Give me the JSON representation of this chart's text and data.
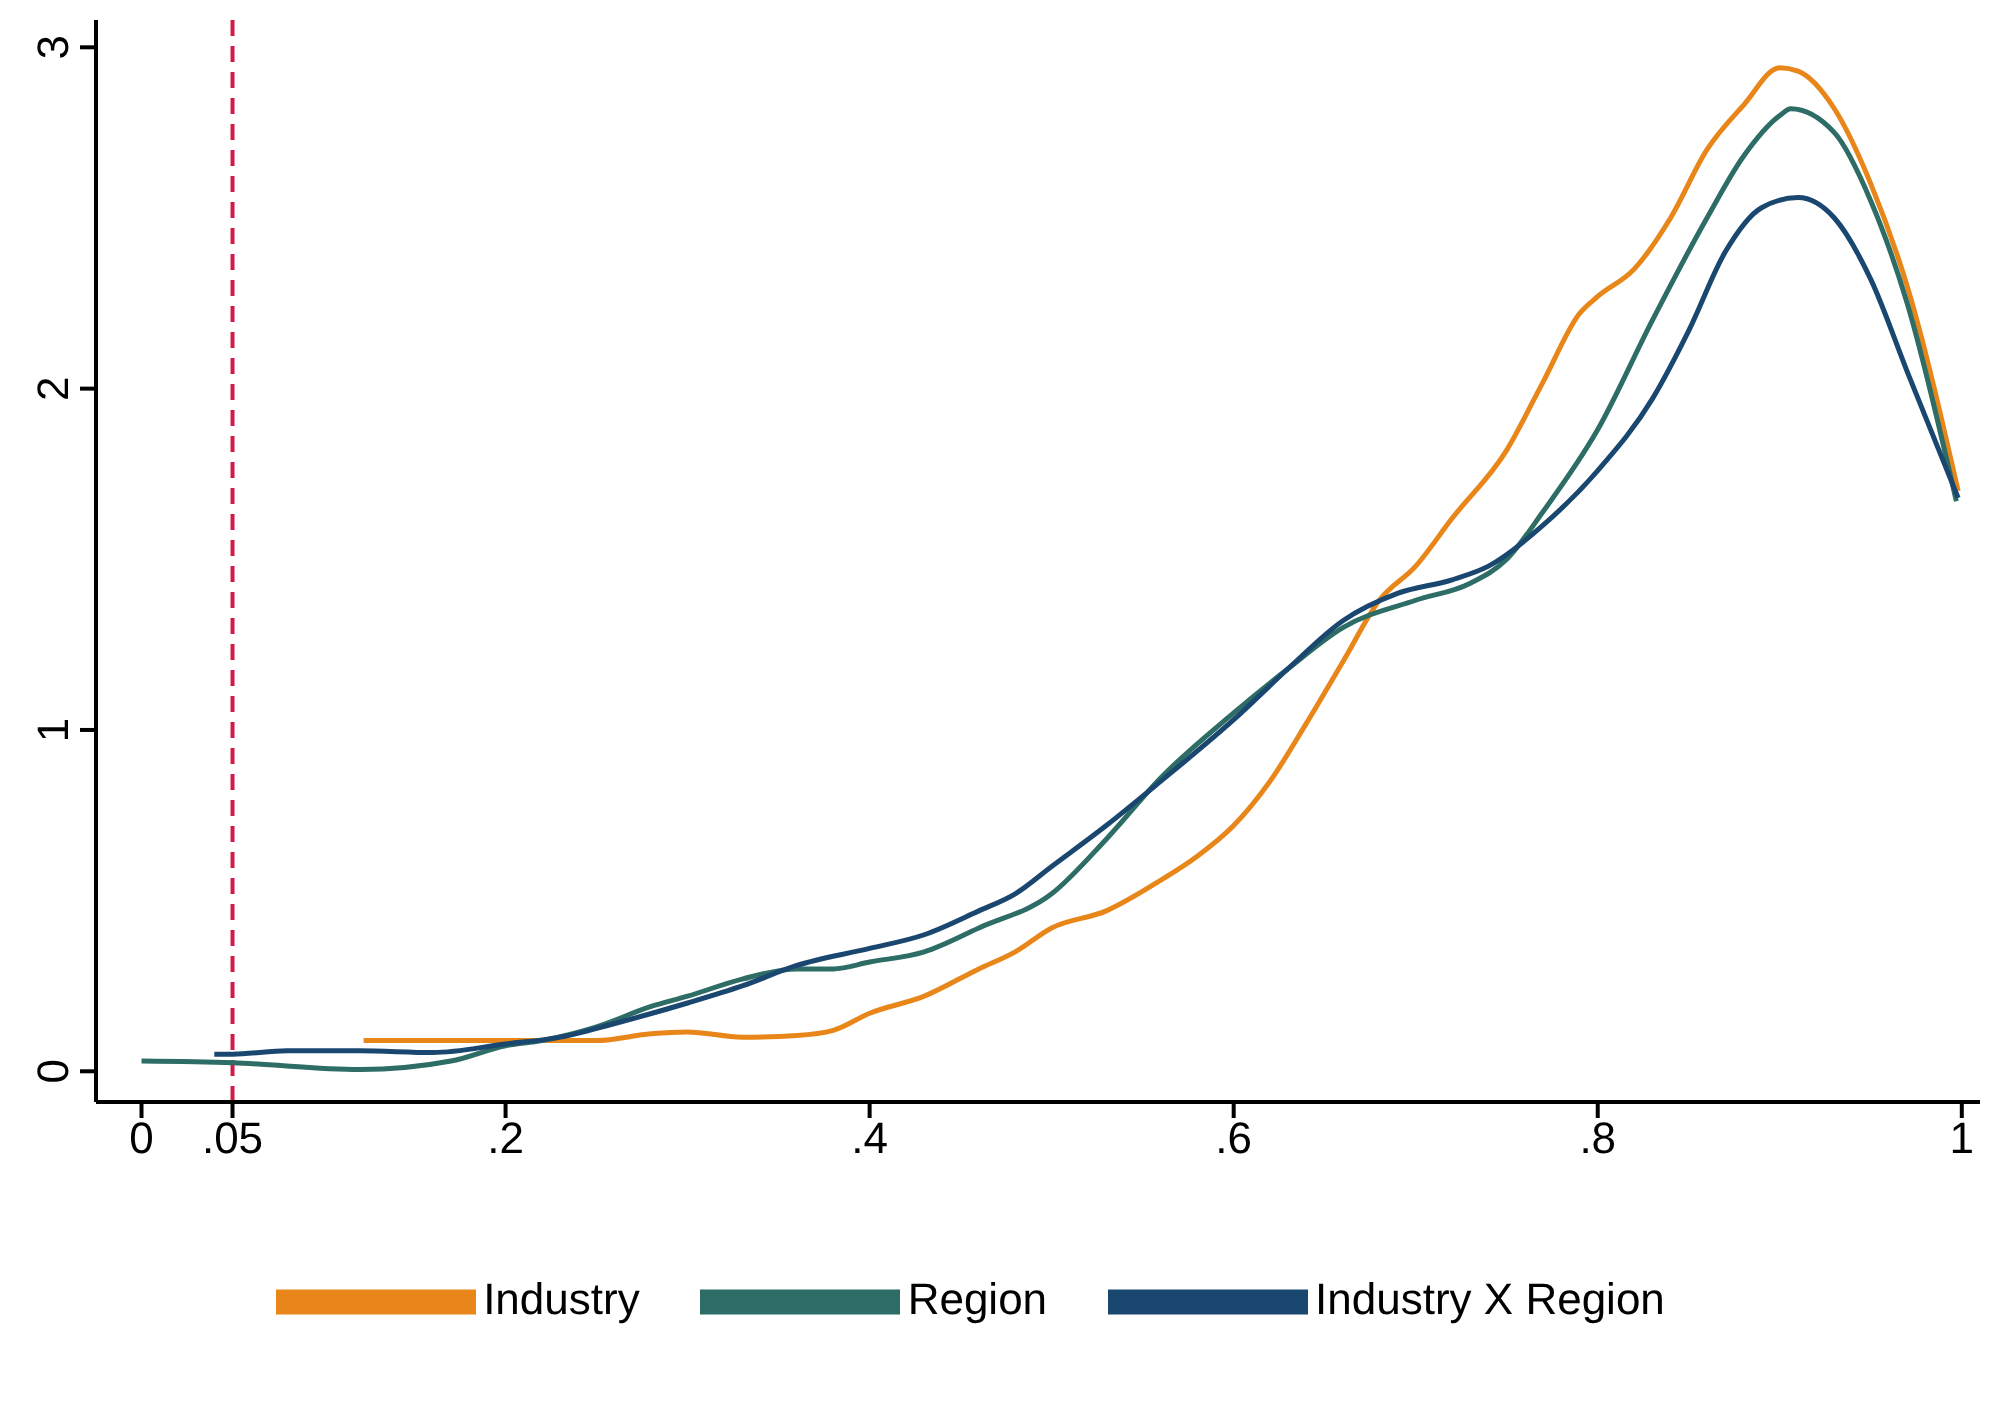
{
  "chart_data": {
    "type": "line",
    "xlim": [
      -0.025,
      1.01
    ],
    "ylim": [
      -0.09,
      3.08
    ],
    "xticks": [
      0,
      {
        "value": 0.05,
        "label": ".05"
      },
      {
        "value": 0.2,
        "label": ".2"
      },
      {
        "value": 0.4,
        "label": ".4"
      },
      {
        "value": 0.6,
        "label": ".6"
      },
      {
        "value": 0.8,
        "label": ".8"
      },
      1
    ],
    "yticks": [
      0,
      1,
      2,
      3
    ],
    "series": [
      {
        "name": "Industry",
        "color": "#e8861a",
        "x": [
          0.122,
          0.16,
          0.2,
          0.22,
          0.25,
          0.28,
          0.3,
          0.33,
          0.36,
          0.38,
          0.4,
          0.43,
          0.46,
          0.48,
          0.5,
          0.53,
          0.56,
          0.58,
          0.6,
          0.62,
          0.64,
          0.66,
          0.68,
          0.7,
          0.72,
          0.75,
          0.77,
          0.79,
          0.8,
          0.82,
          0.84,
          0.86,
          0.88,
          0.9,
          0.91,
          0.93,
          0.95,
          0.97,
          0.998
        ],
        "values": [
          0.09,
          0.09,
          0.09,
          0.09,
          0.09,
          0.11,
          0.115,
          0.1,
          0.105,
          0.12,
          0.17,
          0.22,
          0.3,
          0.35,
          0.42,
          0.47,
          0.56,
          0.63,
          0.72,
          0.85,
          1.02,
          1.2,
          1.38,
          1.48,
          1.62,
          1.82,
          2.02,
          2.22,
          2.27,
          2.35,
          2.5,
          2.7,
          2.83,
          2.94,
          2.93,
          2.82,
          2.6,
          2.3,
          1.7
        ]
      },
      {
        "name": "Region",
        "color": "#2d6d66",
        "x": [
          0,
          0.05,
          0.12,
          0.17,
          0.2,
          0.22,
          0.25,
          0.28,
          0.3,
          0.33,
          0.36,
          0.38,
          0.4,
          0.43,
          0.46,
          0.5,
          0.53,
          0.56,
          0.6,
          0.63,
          0.66,
          0.7,
          0.73,
          0.75,
          0.77,
          0.8,
          0.83,
          0.86,
          0.88,
          0.9,
          0.906,
          0.93,
          0.95,
          0.97,
          0.997
        ],
        "values": [
          0.03,
          0.025,
          0.005,
          0.03,
          0.075,
          0.09,
          0.13,
          0.19,
          0.22,
          0.27,
          0.3,
          0.3,
          0.32,
          0.35,
          0.42,
          0.52,
          0.68,
          0.86,
          1.05,
          1.18,
          1.3,
          1.38,
          1.43,
          1.5,
          1.64,
          1.88,
          2.2,
          2.5,
          2.68,
          2.8,
          2.82,
          2.75,
          2.55,
          2.25,
          1.67
        ]
      },
      {
        "name": "Industry X Region",
        "color": "#1a476f",
        "x": [
          0.04,
          0.05,
          0.08,
          0.12,
          0.16,
          0.2,
          0.23,
          0.26,
          0.3,
          0.33,
          0.36,
          0.4,
          0.43,
          0.46,
          0.48,
          0.5,
          0.53,
          0.56,
          0.6,
          0.63,
          0.66,
          0.69,
          0.72,
          0.74,
          0.77,
          0.8,
          0.83,
          0.85,
          0.87,
          0.89,
          0.91,
          0.93,
          0.95,
          0.97,
          0.998
        ],
        "values": [
          0.05,
          0.05,
          0.06,
          0.06,
          0.055,
          0.08,
          0.1,
          0.14,
          0.2,
          0.25,
          0.31,
          0.36,
          0.4,
          0.47,
          0.52,
          0.6,
          0.72,
          0.85,
          1.03,
          1.18,
          1.32,
          1.4,
          1.44,
          1.48,
          1.6,
          1.76,
          1.97,
          2.17,
          2.4,
          2.53,
          2.56,
          2.5,
          2.32,
          2.05,
          1.68
        ]
      }
    ],
    "ref_lines": [
      {
        "axis": "x",
        "value": 0.05,
        "color": "#d01c4a",
        "line_style": "dashed"
      }
    ],
    "legend": "bottom",
    "grid": false,
    "marker": "none",
    "line_style": "solid"
  }
}
